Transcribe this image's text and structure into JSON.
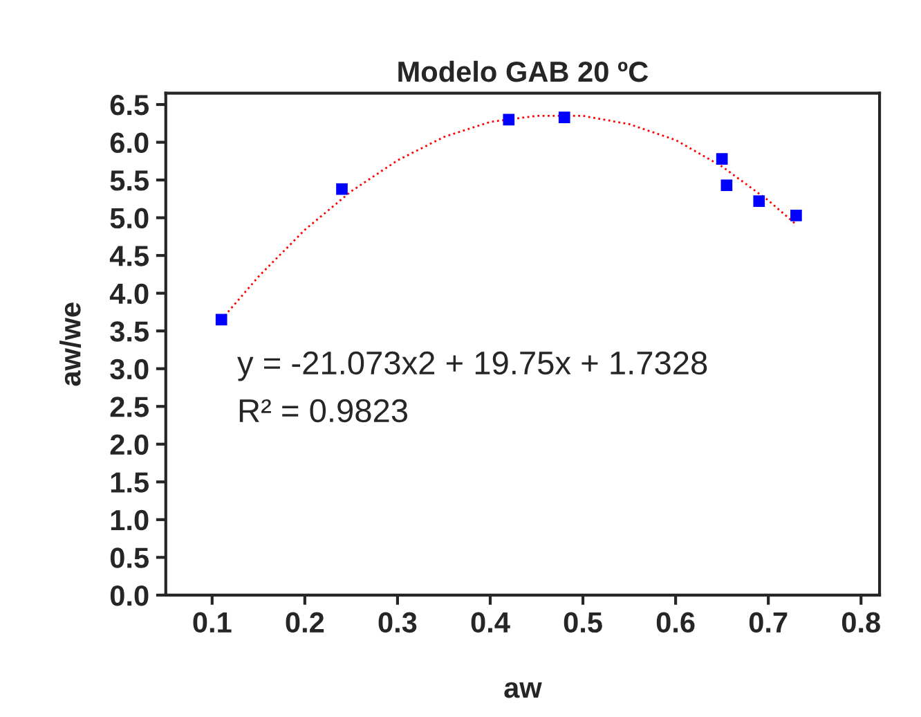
{
  "chart_data": {
    "type": "scatter",
    "title": "Modelo GAB 20 ºC",
    "xlabel": "aw",
    "ylabel": "aw/we",
    "x": [
      0.11,
      0.24,
      0.42,
      0.48,
      0.65,
      0.655,
      0.69,
      0.73
    ],
    "series": [
      {
        "color": "#0000ff",
        "marker": "square",
        "values": [
          3.65,
          5.38,
          6.3,
          6.33,
          5.78,
          5.43,
          5.22,
          5.03
        ]
      },
      {
        "type": "line",
        "color": "#ff0000",
        "line_style": "dotted",
        "marker": "none",
        "x": [
          0.11,
          0.15,
          0.2,
          0.25,
          0.3,
          0.35,
          0.4,
          0.45,
          0.5,
          0.55,
          0.6,
          0.65,
          0.7,
          0.73
        ],
        "values": [
          3.65,
          4.22,
          4.84,
          5.35,
          5.76,
          6.07,
          6.27,
          6.35,
          6.35,
          6.24,
          6.03,
          5.68,
          5.23,
          4.91
        ]
      }
    ],
    "annotations": [
      "y = -21.073x2 + 19.75x + 1.7328",
      "R² = 0.9823"
    ],
    "xlim": [
      0.05,
      0.82
    ],
    "xticks": [
      0.1,
      0.2,
      0.3,
      0.4,
      0.5,
      0.6,
      0.7,
      0.8
    ],
    "ylim": [
      0,
      6.65
    ],
    "yticks": [
      {
        "value": 0,
        "label": "0.0"
      },
      0.5,
      {
        "value": 1,
        "label": "1.0"
      },
      1.5,
      {
        "value": 2,
        "label": "2.0"
      },
      2.5,
      {
        "value": 3,
        "label": "3.0"
      },
      3.5,
      {
        "value": 4,
        "label": "4.0"
      },
      4.5,
      {
        "value": 5,
        "label": "5.0"
      },
      5.5,
      {
        "value": 6,
        "label": "6.0"
      },
      6.5
    ],
    "grid": false,
    "legend": false
  }
}
